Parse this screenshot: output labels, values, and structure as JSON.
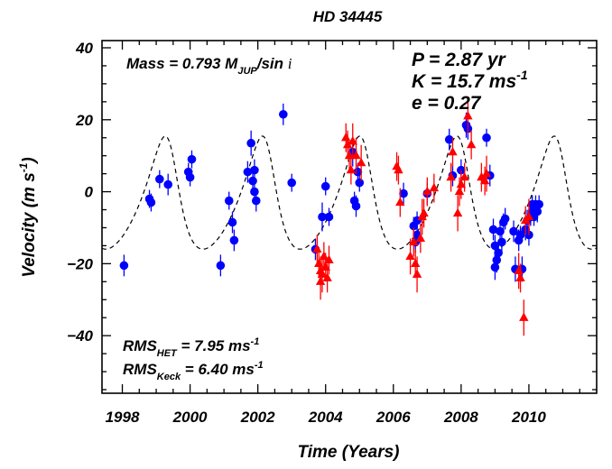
{
  "chart_data": {
    "type": "scatter",
    "title": "HD 34445",
    "xlabel": "Time  (Years)",
    "ylabel": "Velocity  (m s",
    "ylabel_sup": "-1",
    "ylabel_tail": ")",
    "xlim": [
      1997.4,
      2012.0
    ],
    "ylim": [
      -56,
      42
    ],
    "xticks": [
      1998,
      2000,
      2002,
      2004,
      2006,
      2008,
      2010
    ],
    "xtick_labels": [
      "1998",
      "2000",
      "2002",
      "2004",
      "2006",
      "2008",
      "2010"
    ],
    "yticks": [
      40,
      20,
      0,
      -20,
      -40
    ],
    "ytick_labels": [
      "40",
      "20",
      "0",
      "−20",
      "−40"
    ],
    "grid": false,
    "annotations": {
      "mass": "Mass = 0.793  M",
      "mass_sub": "JUP",
      "mass_tail": "/sin ",
      "mass_i": "i",
      "period": "P = 2.87 yr",
      "amplitude": "K = 15.7 ms",
      "amplitude_sup": "-1",
      "ecc": "e = 0.27",
      "rms_het_pre": "RMS",
      "rms_het_sub": "HET",
      "rms_het_val": " = 7.95 ms",
      "rms_het_sup": "-1",
      "rms_keck_pre": "RMS",
      "rms_keck_sub": "Keck",
      "rms_keck_val": " = 6.40 ms",
      "rms_keck_sup": "-1"
    },
    "fit": {
      "P": 2.87,
      "K": 15.7,
      "e": 0.27,
      "omega_deg": 40,
      "t_peri": 1999.45,
      "offset": -3.5,
      "style": "dashed"
    },
    "series": [
      {
        "marker": "circle",
        "color": "#0000ff",
        "points": [
          [
            1998.05,
            -20.5,
            3
          ],
          [
            1998.8,
            -2,
            2.5
          ],
          [
            1998.85,
            -3,
            2.5
          ],
          [
            1999.1,
            3.5,
            2.5
          ],
          [
            1999.35,
            2,
            3
          ],
          [
            1999.95,
            5.5,
            2.5
          ],
          [
            2000.0,
            4,
            2.5
          ],
          [
            2000.05,
            9,
            2.5
          ],
          [
            2000.9,
            -20.5,
            3
          ],
          [
            2001.15,
            -2.5,
            2.5
          ],
          [
            2001.25,
            -8.5,
            3
          ],
          [
            2001.3,
            -13.5,
            3
          ],
          [
            2001.7,
            5.5,
            3
          ],
          [
            2001.8,
            13.5,
            3.5
          ],
          [
            2001.9,
            6,
            3
          ],
          [
            2001.85,
            3,
            3
          ],
          [
            2001.9,
            0,
            3
          ],
          [
            2001.95,
            -2.5,
            3
          ],
          [
            2002.75,
            21.5,
            3
          ],
          [
            2003.0,
            2.5,
            2.5
          ],
          [
            2003.7,
            -16,
            3
          ],
          [
            2003.9,
            -7,
            4
          ],
          [
            2004.0,
            1.5,
            2.5
          ],
          [
            2004.1,
            -7,
            2.5
          ],
          [
            2004.8,
            11,
            4
          ],
          [
            2004.85,
            -2.5,
            2.5
          ],
          [
            2004.9,
            -4,
            3
          ],
          [
            2004.95,
            5.5,
            2.5
          ],
          [
            2005.0,
            2.5,
            2.5
          ],
          [
            2006.3,
            -0.5,
            3
          ],
          [
            2006.6,
            -9.5,
            2.5
          ],
          [
            2006.65,
            -14,
            3
          ],
          [
            2006.7,
            -12,
            2.5
          ],
          [
            2006.7,
            -8,
            2.5
          ],
          [
            2007.0,
            -0.5,
            3
          ],
          [
            2007.65,
            14.5,
            3
          ],
          [
            2007.75,
            4.5,
            3
          ],
          [
            2008.0,
            6,
            3
          ],
          [
            2008.15,
            18.5,
            3.5
          ],
          [
            2008.2,
            17.5,
            3
          ],
          [
            2008.75,
            15,
            2.5
          ],
          [
            2008.85,
            4.5,
            3
          ],
          [
            2008.95,
            -10.5,
            3
          ],
          [
            2009.0,
            -15,
            3
          ],
          [
            2009.0,
            -21,
            3.5
          ],
          [
            2009.05,
            -19,
            3.5
          ],
          [
            2009.1,
            -17,
            2.5
          ],
          [
            2009.15,
            -11,
            3
          ],
          [
            2009.2,
            -14,
            3
          ],
          [
            2009.25,
            -8.5,
            2.5
          ],
          [
            2009.3,
            -7.5,
            3
          ],
          [
            2009.55,
            -11,
            3
          ],
          [
            2009.6,
            -21.5,
            3.5
          ],
          [
            2009.7,
            -13.5,
            3
          ],
          [
            2009.75,
            -12,
            2.5
          ],
          [
            2009.8,
            -21.5,
            3.5
          ],
          [
            2009.9,
            -10.5,
            3
          ],
          [
            2009.95,
            -8,
            3
          ],
          [
            2010.0,
            -12,
            3
          ],
          [
            2010.05,
            -7,
            2.5
          ],
          [
            2010.1,
            -5.5,
            2.5
          ],
          [
            2010.1,
            -3.5,
            2.5
          ],
          [
            2010.15,
            -7,
            2.5
          ],
          [
            2010.2,
            -3.5,
            2.5
          ],
          [
            2010.25,
            -5.5,
            3
          ],
          [
            2010.3,
            -3.5,
            2.5
          ]
        ]
      },
      {
        "marker": "triangle",
        "color": "#ff0000",
        "points": [
          [
            2003.75,
            -16,
            4
          ],
          [
            2003.8,
            -20,
            4
          ],
          [
            2003.85,
            -25,
            5
          ],
          [
            2003.85,
            -22,
            4
          ],
          [
            2003.9,
            -23,
            5
          ],
          [
            2003.95,
            -18,
            4
          ],
          [
            2004.0,
            -21,
            4
          ],
          [
            2004.05,
            -24,
            4
          ],
          [
            2004.1,
            -19,
            4
          ],
          [
            2004.6,
            15,
            4
          ],
          [
            2004.65,
            13,
            4
          ],
          [
            2004.7,
            10,
            4
          ],
          [
            2004.75,
            6,
            4
          ],
          [
            2004.8,
            14,
            5
          ],
          [
            2004.9,
            10,
            5
          ],
          [
            2005.05,
            8,
            5
          ],
          [
            2006.1,
            7,
            4
          ],
          [
            2006.15,
            6,
            4
          ],
          [
            2006.2,
            -3,
            4
          ],
          [
            2006.5,
            -18,
            5
          ],
          [
            2006.6,
            -14,
            4
          ],
          [
            2006.65,
            -20,
            4
          ],
          [
            2006.7,
            -23,
            5
          ],
          [
            2006.8,
            -13,
            4
          ],
          [
            2006.85,
            -7,
            5
          ],
          [
            2006.9,
            -6,
            4
          ],
          [
            2007.0,
            0,
            4
          ],
          [
            2007.2,
            1,
            4
          ],
          [
            2007.7,
            4,
            4
          ],
          [
            2007.75,
            11,
            4
          ],
          [
            2007.9,
            -6,
            5
          ],
          [
            2007.95,
            0,
            4
          ],
          [
            2008.0,
            2,
            4
          ],
          [
            2008.1,
            4,
            4
          ],
          [
            2008.2,
            21,
            5
          ],
          [
            2008.3,
            13,
            4
          ],
          [
            2008.6,
            4,
            4
          ],
          [
            2008.7,
            3,
            4
          ],
          [
            2008.75,
            5,
            5
          ],
          [
            2009.7,
            -22,
            5
          ],
          [
            2009.75,
            -24,
            4
          ],
          [
            2009.85,
            -35,
            5
          ],
          [
            2009.9,
            -8,
            4
          ],
          [
            2010.0,
            -7,
            5
          ]
        ]
      }
    ]
  }
}
